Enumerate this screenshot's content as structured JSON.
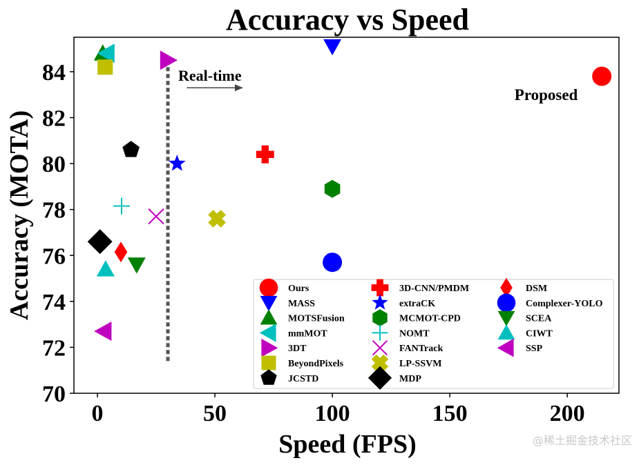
{
  "chart_data": {
    "type": "scatter",
    "title": "Accuracy vs Speed",
    "xlabel": "Speed (FPS)",
    "ylabel": "Accuracy (MOTA)",
    "xlim": [
      -10,
      222
    ],
    "ylim": [
      70,
      85.5
    ],
    "xticks": [
      0,
      50,
      100,
      150,
      200
    ],
    "yticks": [
      70,
      72,
      74,
      76,
      78,
      80,
      82,
      84
    ],
    "grid": false,
    "legend_position": "lower-right",
    "series": [
      {
        "name": "Ours",
        "x": 214.7,
        "y": 83.8,
        "marker": "circle",
        "color": "#ff0000"
      },
      {
        "name": "MASS",
        "x": 100,
        "y": 85.1,
        "marker": "triangle-down",
        "color": "#0000ff"
      },
      {
        "name": "MOTSFusion",
        "x": 2.3,
        "y": 84.8,
        "marker": "triangle-up",
        "color": "#008000"
      },
      {
        "name": "mmMOT",
        "x": 4,
        "y": 84.8,
        "marker": "triangle-left",
        "color": "#00bfbf"
      },
      {
        "name": "3DT",
        "x": 30,
        "y": 84.5,
        "marker": "triangle-right",
        "color": "#bf00bf"
      },
      {
        "name": "BeyondPixels",
        "x": 3.3,
        "y": 84.2,
        "marker": "square",
        "color": "#bfbf00"
      },
      {
        "name": "JCSTD",
        "x": 14.3,
        "y": 80.6,
        "marker": "pentagon",
        "color": "#000000"
      },
      {
        "name": "3D-CNN/PMDM",
        "x": 71.4,
        "y": 80.4,
        "marker": "plus-filled",
        "color": "#ff0000"
      },
      {
        "name": "extraCK",
        "x": 33.9,
        "y": 80.0,
        "marker": "star",
        "color": "#0000ff"
      },
      {
        "name": "MCMOT-CPD",
        "x": 100,
        "y": 78.9,
        "marker": "hexagon",
        "color": "#008000"
      },
      {
        "name": "NOMT",
        "x": 10.3,
        "y": 78.15,
        "marker": "plus-thin",
        "color": "#00bfbf"
      },
      {
        "name": "FANTrack",
        "x": 25,
        "y": 77.7,
        "marker": "x-thin",
        "color": "#bf00bf"
      },
      {
        "name": "LP-SSVM",
        "x": 50.9,
        "y": 77.6,
        "marker": "x-filled",
        "color": "#bfbf00"
      },
      {
        "name": "MDP",
        "x": 1.1,
        "y": 76.6,
        "marker": "diamond",
        "color": "#000000"
      },
      {
        "name": "DSM",
        "x": 10,
        "y": 76.15,
        "marker": "thin-diamond",
        "color": "#ff0000"
      },
      {
        "name": "Complexer-YOLO",
        "x": 100,
        "y": 75.7,
        "marker": "circle",
        "color": "#0000ff"
      },
      {
        "name": "SCEA",
        "x": 16.7,
        "y": 75.6,
        "marker": "triangle-down",
        "color": "#008000"
      },
      {
        "name": "CIWT",
        "x": 3.5,
        "y": 75.4,
        "marker": "triangle-up",
        "color": "#00bfbf"
      },
      {
        "name": "SSP",
        "x": 2.7,
        "y": 72.7,
        "marker": "triangle-left",
        "color": "#bf00bf"
      }
    ],
    "annotations": {
      "realtime_label": "Real-time",
      "realtime_fps": 30,
      "realtime_line_y_range": [
        71.3,
        84.5
      ],
      "realtime_arrow_x": [
        38,
        62
      ],
      "realtime_arrow_y": 83.3,
      "proposed_label": "Proposed",
      "proposed_x": 191,
      "proposed_y": 83.0
    }
  },
  "watermark": "@稀土掘金技术社区"
}
